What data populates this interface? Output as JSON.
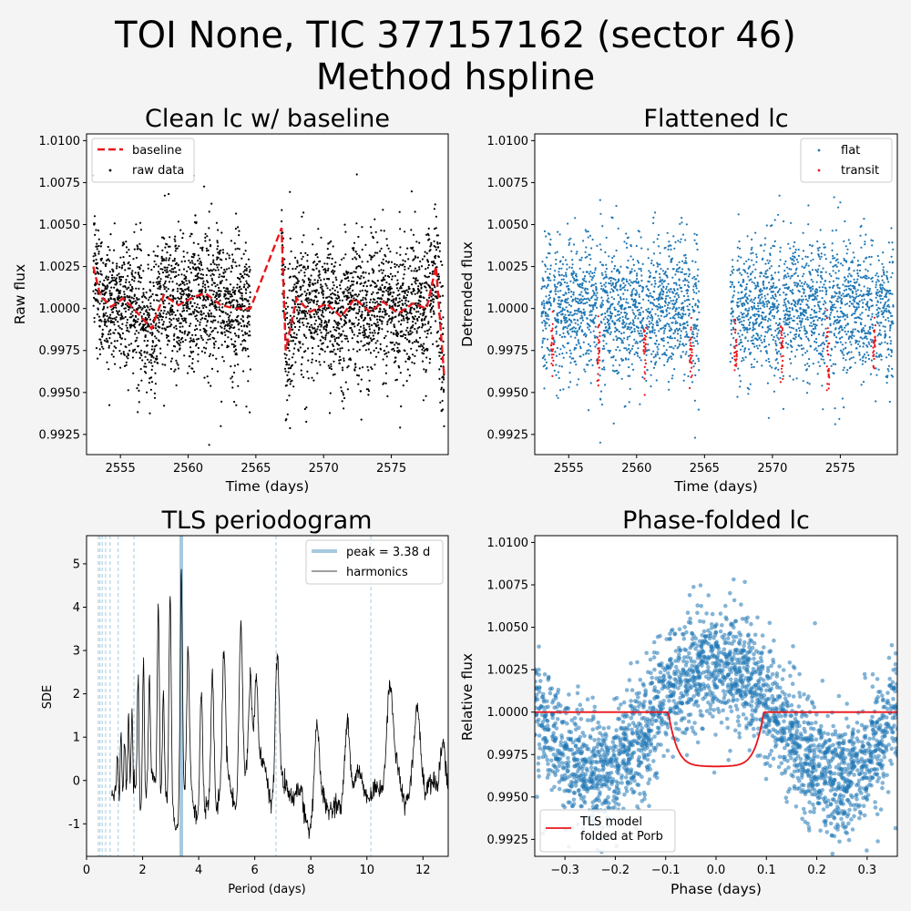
{
  "suptitle": [
    "TOI None, TIC 377157162 (sector 46)",
    "Method hspline"
  ],
  "chart_data": [
    {
      "type": "scatter",
      "title": "Clean lc w/ baseline",
      "xlabel": "Time (days)",
      "ylabel": "Raw flux",
      "xlim": [
        2552.5,
        2579.2
      ],
      "ylim": [
        0.9913,
        1.0104
      ],
      "xticks": [
        2555,
        2560,
        2565,
        2570,
        2575
      ],
      "yticks": [
        0.9925,
        0.995,
        0.9975,
        1.0,
        1.0025,
        1.005,
        1.0075,
        1.01
      ],
      "ytick_labels": [
        "0.9925",
        "0.9950",
        "0.9975",
        "1.0000",
        "1.0025",
        "1.0050",
        "1.0075",
        "1.0100"
      ],
      "legend": {
        "position": "upper-left",
        "entries": [
          {
            "label": "baseline",
            "color": "#e8161b",
            "style": "dashed-line"
          },
          {
            "label": "raw data",
            "color": "#000000",
            "style": "marker"
          }
        ]
      },
      "segments": [
        [
          2553.0,
          2564.6
        ],
        [
          2566.9,
          2578.9
        ]
      ],
      "scatter_amplitude": 0.0024,
      "baseline_points": [
        [
          2553.0,
          1.0025
        ],
        [
          2553.5,
          1.0008
        ],
        [
          2554.3,
          1.0001
        ],
        [
          2555.2,
          1.0006
        ],
        [
          2556.2,
          0.9998
        ],
        [
          2557.3,
          0.9988
        ],
        [
          2558.2,
          1.0008
        ],
        [
          2559.3,
          1.0002
        ],
        [
          2560.4,
          1.0007
        ],
        [
          2561.3,
          1.0009
        ],
        [
          2562.4,
          1.0002
        ],
        [
          2563.5,
          1.0
        ],
        [
          2564.6,
          1.0
        ],
        [
          2566.9,
          1.0048
        ],
        [
          2567.2,
          0.9975
        ],
        [
          2568.0,
          1.0006
        ],
        [
          2569.0,
          0.9998
        ],
        [
          2570.2,
          1.0003
        ],
        [
          2571.3,
          0.9995
        ],
        [
          2572.3,
          1.0006
        ],
        [
          2573.4,
          0.9998
        ],
        [
          2574.4,
          1.0004
        ],
        [
          2575.5,
          0.9997
        ],
        [
          2576.6,
          1.0003
        ],
        [
          2577.6,
          1.0
        ],
        [
          2578.3,
          1.0025
        ],
        [
          2578.9,
          0.996
        ]
      ]
    },
    {
      "type": "scatter",
      "title": "Flattened lc",
      "xlabel": "Time (days)",
      "ylabel": "Detrended flux",
      "xlim": [
        2552.5,
        2579.2
      ],
      "ylim": [
        0.9913,
        1.0104
      ],
      "xticks": [
        2555,
        2560,
        2565,
        2570,
        2575
      ],
      "yticks": [
        0.9925,
        0.995,
        0.9975,
        1.0,
        1.0025,
        1.005,
        1.0075,
        1.01
      ],
      "ytick_labels": [
        "0.9925",
        "0.9950",
        "0.9975",
        "1.0000",
        "1.0025",
        "1.0050",
        "1.0075",
        "1.0100"
      ],
      "legend": {
        "position": "upper-right",
        "entries": [
          {
            "label": "flat",
            "color": "#1f77b4",
            "style": "marker"
          },
          {
            "label": "transit",
            "color": "#e8161b",
            "style": "marker"
          }
        ]
      },
      "segments": [
        [
          2553.0,
          2564.6
        ],
        [
          2566.9,
          2578.9
        ]
      ],
      "transit_times": [
        2553.8,
        2557.2,
        2560.6,
        2564.0,
        2567.3,
        2570.7,
        2574.1,
        2577.5
      ],
      "transit_width_days": 0.19,
      "transit_depth": 0.0032
    },
    {
      "type": "line",
      "title": "TLS periodogram",
      "xlabel": "Period (days)",
      "ylabel": "SDE",
      "xlim": [
        0,
        12.9
      ],
      "ylim": [
        -1.75,
        5.65
      ],
      "xticks": [
        0,
        2,
        4,
        6,
        8,
        10,
        12
      ],
      "yticks": [
        -1,
        0,
        1,
        2,
        3,
        4,
        5
      ],
      "legend": {
        "position": "upper-right",
        "entries": [
          {
            "label": "peak = 3.38 d",
            "color": "#a6c9e0",
            "style": "thick-line"
          },
          {
            "label": "harmonics",
            "color": "#000000",
            "style": "thin-line"
          }
        ]
      },
      "peak_period": 3.38,
      "peak_sde": 5.35,
      "harmonic_periods": [
        0.42,
        0.48,
        0.56,
        0.68,
        0.84,
        1.13,
        1.69,
        6.76,
        10.14
      ],
      "series_x_range": [
        0.9,
        12.9
      ],
      "spikes": [
        [
          1.1,
          0.7
        ],
        [
          1.23,
          1.2
        ],
        [
          1.36,
          0.9
        ],
        [
          1.5,
          1.5
        ],
        [
          1.62,
          1.7
        ],
        [
          1.84,
          2.6
        ],
        [
          2.03,
          3.1
        ],
        [
          2.24,
          2.0
        ],
        [
          2.56,
          4.1
        ],
        [
          2.74,
          2.3
        ],
        [
          2.98,
          4.6
        ],
        [
          3.38,
          5.35
        ],
        [
          3.62,
          3.1
        ],
        [
          4.09,
          2.6
        ],
        [
          4.49,
          2.9
        ],
        [
          4.9,
          2.5
        ],
        [
          5.5,
          3.6
        ],
        [
          5.84,
          2.2
        ],
        [
          6.05,
          2.0
        ],
        [
          6.8,
          3.0
        ],
        [
          8.2,
          1.6
        ],
        [
          9.3,
          2.0
        ],
        [
          10.8,
          1.7
        ],
        [
          11.8,
          1.6
        ],
        [
          12.7,
          1.6
        ]
      ]
    },
    {
      "type": "scatter",
      "title": "Phase-folded lc",
      "xlabel": "Phase (days)",
      "ylabel": "Relative flux",
      "xlim": [
        -0.36,
        0.36
      ],
      "ylim": [
        0.9915,
        1.0104
      ],
      "xticks": [
        -0.3,
        -0.2,
        -0.1,
        0.0,
        0.1,
        0.2,
        0.3
      ],
      "xtick_labels": [
        "−0.3",
        "−0.2",
        "−0.1",
        "0.0",
        "0.1",
        "0.2",
        "0.3"
      ],
      "yticks": [
        0.9925,
        0.995,
        0.9975,
        1.0,
        1.0025,
        1.005,
        1.0075,
        1.01
      ],
      "ytick_labels": [
        "0.9925",
        "0.9950",
        "0.9975",
        "1.0000",
        "1.0025",
        "1.0050",
        "1.0075",
        "1.0100"
      ],
      "legend": {
        "position": "lower-left",
        "entries": [
          {
            "label": "TLS model",
            "label2": "folded at Porb",
            "color": "#e8161b",
            "style": "line"
          }
        ]
      },
      "model": {
        "out_of_transit": 1.0,
        "depth": 0.0032,
        "half_width": 0.095
      }
    }
  ]
}
